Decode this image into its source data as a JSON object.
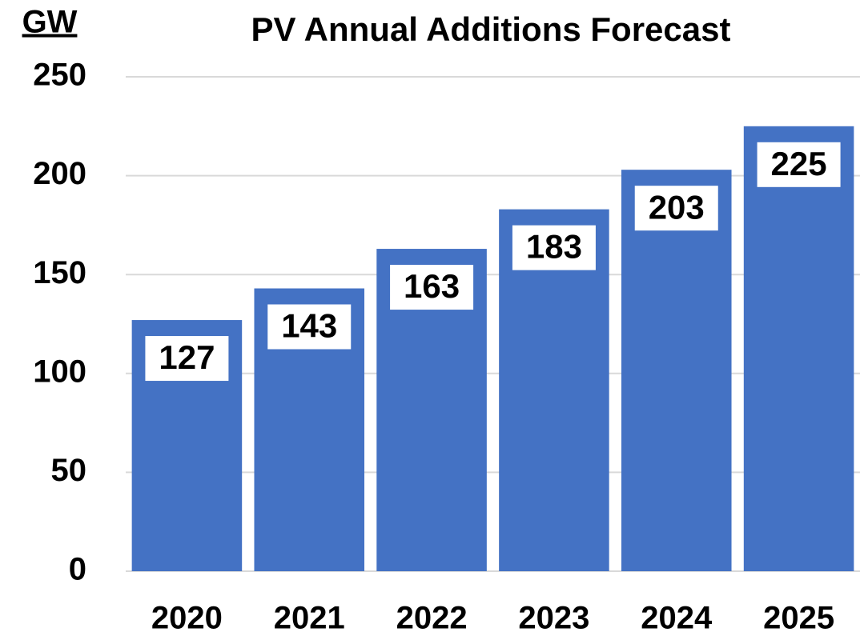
{
  "chart_data": {
    "type": "bar",
    "title": "PV Annual Additions Forecast",
    "ylabel": "GW",
    "categories": [
      "2020",
      "2021",
      "2022",
      "2023",
      "2024",
      "2025"
    ],
    "values": [
      127,
      143,
      163,
      183,
      203,
      225
    ],
    "color": "#4472c4",
    "ylim": [
      0,
      250
    ],
    "yticks": [
      0,
      50,
      100,
      150,
      200,
      250
    ],
    "grid": true,
    "data_labels": true
  }
}
